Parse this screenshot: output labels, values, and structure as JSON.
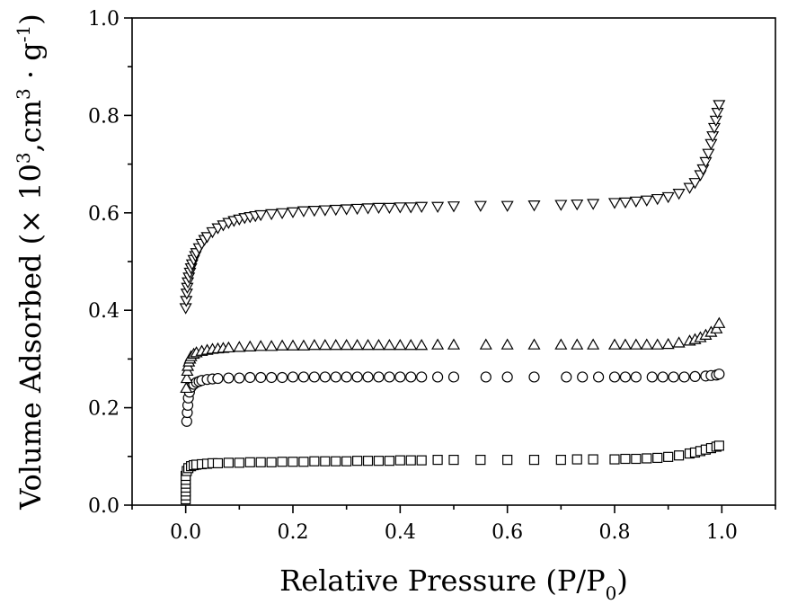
{
  "chart_data": {
    "type": "scatter",
    "title": "",
    "xlabel": "Relative Pressure (P/P",
    "xlabel_sub": "0",
    "xlabel_end": ")",
    "ylabel_main": "Volume Adsorbed (× 10",
    "ylabel_sup1": "3",
    "ylabel_mid": ",cm",
    "ylabel_sup2": "3",
    "ylabel_dot": " · g",
    "ylabel_sup3": "-1",
    "ylabel_end": ")",
    "xlim": [
      -0.1,
      1.1
    ],
    "ylim": [
      0.0,
      1.0
    ],
    "x_ticks": [
      "0.0",
      "0.2",
      "0.4",
      "0.6",
      "0.8",
      "1.0"
    ],
    "y_ticks": [
      "0.0",
      "0.2",
      "0.4",
      "0.6",
      "0.8",
      "1.0"
    ],
    "grid": false,
    "series": [
      {
        "marker": "square",
        "x": [
          0.0,
          0.0,
          0.0,
          0.0,
          0.0,
          0.0,
          0.0,
          0.002,
          0.005,
          0.01,
          0.015,
          0.02,
          0.03,
          0.04,
          0.05,
          0.06,
          0.08,
          0.1,
          0.12,
          0.14,
          0.16,
          0.18,
          0.2,
          0.22,
          0.24,
          0.26,
          0.28,
          0.3,
          0.32,
          0.34,
          0.36,
          0.38,
          0.4,
          0.42,
          0.44,
          0.47,
          0.5,
          0.55,
          0.6,
          0.65,
          0.7,
          0.73,
          0.76,
          0.8,
          0.82,
          0.84,
          0.86,
          0.88,
          0.9,
          0.92,
          0.94,
          0.95,
          0.96,
          0.97,
          0.98,
          0.99,
          0.995
        ],
        "y": [
          0.012,
          0.02,
          0.028,
          0.036,
          0.044,
          0.052,
          0.06,
          0.07,
          0.076,
          0.08,
          0.082,
          0.083,
          0.084,
          0.085,
          0.086,
          0.086,
          0.087,
          0.087,
          0.088,
          0.088,
          0.088,
          0.089,
          0.089,
          0.089,
          0.09,
          0.09,
          0.09,
          0.09,
          0.091,
          0.091,
          0.091,
          0.091,
          0.092,
          0.092,
          0.092,
          0.093,
          0.093,
          0.093,
          0.093,
          0.093,
          0.093,
          0.094,
          0.094,
          0.094,
          0.095,
          0.095,
          0.096,
          0.097,
          0.099,
          0.102,
          0.106,
          0.108,
          0.111,
          0.114,
          0.117,
          0.12,
          0.122
        ]
      },
      {
        "marker": "circle",
        "x": [
          0.002,
          0.003,
          0.004,
          0.005,
          0.007,
          0.01,
          0.015,
          0.02,
          0.025,
          0.03,
          0.04,
          0.05,
          0.06,
          0.08,
          0.1,
          0.12,
          0.14,
          0.16,
          0.18,
          0.2,
          0.22,
          0.24,
          0.26,
          0.28,
          0.3,
          0.32,
          0.34,
          0.36,
          0.38,
          0.4,
          0.42,
          0.44,
          0.47,
          0.5,
          0.56,
          0.6,
          0.65,
          0.71,
          0.74,
          0.77,
          0.8,
          0.82,
          0.84,
          0.87,
          0.89,
          0.91,
          0.93,
          0.95,
          0.97,
          0.98,
          0.99,
          0.995
        ],
        "y": [
          0.172,
          0.19,
          0.205,
          0.22,
          0.232,
          0.242,
          0.248,
          0.252,
          0.254,
          0.256,
          0.258,
          0.259,
          0.26,
          0.261,
          0.261,
          0.262,
          0.262,
          0.262,
          0.262,
          0.263,
          0.263,
          0.263,
          0.263,
          0.263,
          0.263,
          0.263,
          0.263,
          0.263,
          0.263,
          0.263,
          0.263,
          0.263,
          0.263,
          0.263,
          0.263,
          0.263,
          0.263,
          0.263,
          0.263,
          0.263,
          0.263,
          0.263,
          0.263,
          0.263,
          0.263,
          0.263,
          0.263,
          0.264,
          0.265,
          0.266,
          0.267,
          0.269
        ]
      },
      {
        "marker": "triangle-up",
        "x": [
          0.001,
          0.002,
          0.003,
          0.004,
          0.006,
          0.008,
          0.01,
          0.015,
          0.02,
          0.03,
          0.04,
          0.05,
          0.06,
          0.07,
          0.08,
          0.1,
          0.12,
          0.14,
          0.16,
          0.18,
          0.2,
          0.22,
          0.24,
          0.26,
          0.28,
          0.3,
          0.32,
          0.34,
          0.36,
          0.38,
          0.4,
          0.42,
          0.44,
          0.47,
          0.5,
          0.56,
          0.6,
          0.65,
          0.7,
          0.73,
          0.76,
          0.8,
          0.82,
          0.84,
          0.86,
          0.88,
          0.9,
          0.92,
          0.94,
          0.95,
          0.96,
          0.97,
          0.98,
          0.99,
          0.995
        ],
        "y": [
          0.24,
          0.26,
          0.275,
          0.285,
          0.294,
          0.3,
          0.305,
          0.31,
          0.313,
          0.316,
          0.318,
          0.32,
          0.321,
          0.322,
          0.323,
          0.324,
          0.325,
          0.326,
          0.326,
          0.327,
          0.327,
          0.327,
          0.328,
          0.328,
          0.328,
          0.328,
          0.328,
          0.328,
          0.328,
          0.328,
          0.328,
          0.328,
          0.328,
          0.329,
          0.329,
          0.329,
          0.329,
          0.329,
          0.329,
          0.329,
          0.329,
          0.329,
          0.329,
          0.329,
          0.329,
          0.329,
          0.33,
          0.333,
          0.337,
          0.34,
          0.344,
          0.349,
          0.355,
          0.362,
          0.373
        ]
      },
      {
        "marker": "triangle-down",
        "x": [
          0.0,
          0.001,
          0.002,
          0.003,
          0.004,
          0.006,
          0.008,
          0.01,
          0.012,
          0.015,
          0.018,
          0.02,
          0.025,
          0.03,
          0.035,
          0.04,
          0.05,
          0.06,
          0.07,
          0.08,
          0.09,
          0.1,
          0.11,
          0.12,
          0.13,
          0.14,
          0.16,
          0.18,
          0.2,
          0.22,
          0.24,
          0.26,
          0.28,
          0.3,
          0.32,
          0.34,
          0.36,
          0.38,
          0.4,
          0.42,
          0.44,
          0.47,
          0.5,
          0.55,
          0.6,
          0.65,
          0.7,
          0.73,
          0.76,
          0.8,
          0.82,
          0.84,
          0.86,
          0.88,
          0.9,
          0.92,
          0.94,
          0.95,
          0.96,
          0.965,
          0.97,
          0.975,
          0.98,
          0.983,
          0.986,
          0.989,
          0.992,
          0.995
        ],
        "y": [
          0.405,
          0.42,
          0.435,
          0.447,
          0.458,
          0.468,
          0.478,
          0.487,
          0.495,
          0.504,
          0.512,
          0.518,
          0.528,
          0.537,
          0.545,
          0.551,
          0.561,
          0.569,
          0.575,
          0.58,
          0.584,
          0.587,
          0.59,
          0.592,
          0.594,
          0.596,
          0.598,
          0.6,
          0.602,
          0.604,
          0.605,
          0.606,
          0.607,
          0.608,
          0.609,
          0.61,
          0.611,
          0.611,
          0.612,
          0.612,
          0.613,
          0.613,
          0.614,
          0.615,
          0.615,
          0.616,
          0.617,
          0.618,
          0.619,
          0.621,
          0.622,
          0.624,
          0.626,
          0.629,
          0.633,
          0.64,
          0.652,
          0.662,
          0.678,
          0.69,
          0.705,
          0.722,
          0.742,
          0.758,
          0.775,
          0.79,
          0.806,
          0.822
        ]
      }
    ]
  }
}
